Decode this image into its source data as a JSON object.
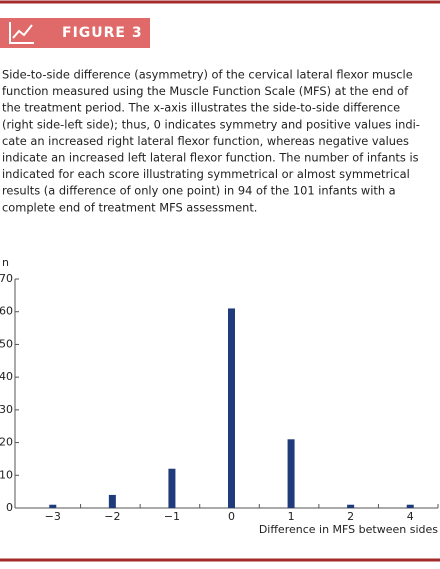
{
  "figure": {
    "label": "FIGURE 3",
    "caption_lines": [
      "Side-to-side difference (asymmetry) of the cervical lateral flexor muscle",
      "function measured using the Muscle Function Scale (MFS) at the end of",
      "the treatment period. The x-axis illustrates the side-to-side difference",
      "(right side-left side); thus, 0 indicates symmetry and positive values indi-",
      "cate an increased right lateral flexor function, whereas negative values",
      "indicate an increased left lateral flexor function. The number of infants is",
      "indicated for each score illustrating symmetrical or almost symmetrical",
      "results (a difference of only one point) in 94 of the 101 infants with a",
      "complete end of treatment MFS assessment."
    ]
  },
  "chart_data": {
    "type": "bar",
    "y_label": "n",
    "x_label": "Difference in MFS between sides",
    "categories": [
      "−3",
      "−2",
      "−1",
      "0",
      "1",
      "2",
      "4"
    ],
    "values": [
      1,
      4,
      12,
      61,
      21,
      1,
      1
    ],
    "color": "#1f3b7c",
    "ylim": [
      0,
      70
    ],
    "yticks": [
      0,
      10,
      20,
      30,
      40,
      50,
      60,
      70
    ]
  }
}
